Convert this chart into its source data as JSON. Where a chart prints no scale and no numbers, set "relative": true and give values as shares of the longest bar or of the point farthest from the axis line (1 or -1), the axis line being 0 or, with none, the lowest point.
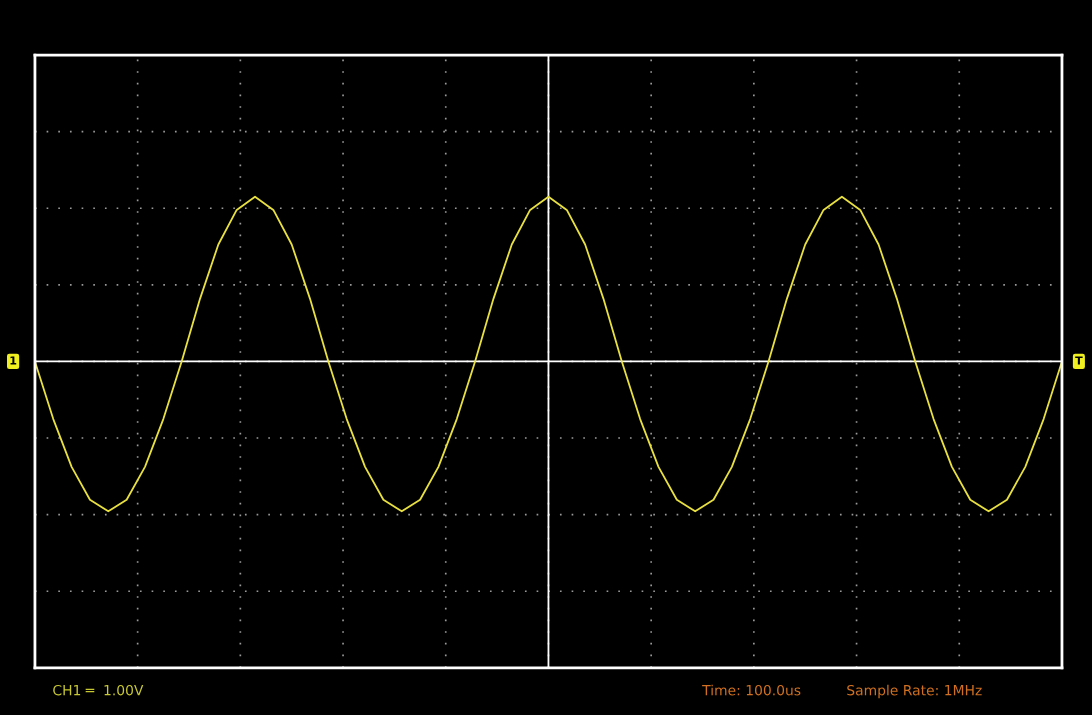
{
  "chart_data": {
    "type": "line",
    "relative": true,
    "grid": true,
    "categories": [
      null,
      null,
      null,
      null,
      null,
      null,
      null,
      null,
      null,
      null,
      null,
      null,
      null,
      null,
      null,
      null,
      null,
      null,
      null,
      null,
      null,
      null,
      null,
      null,
      null,
      null,
      null,
      null,
      null,
      null,
      null,
      null,
      null,
      null,
      null,
      null,
      null,
      null,
      null,
      null,
      null,
      null,
      null,
      null,
      null,
      null,
      null,
      null,
      null,
      null,
      null,
      null,
      null,
      null,
      null,
      null,
      null
    ],
    "series": [
      {
        "color": "#e8e040",
        "values": [
          0,
          -0.35,
          -0.64,
          -0.84,
          -0.91,
          -0.84,
          -0.64,
          -0.35,
          0,
          0.38,
          0.71,
          0.92,
          1,
          0.92,
          0.71,
          0.38,
          0,
          -0.35,
          -0.64,
          -0.84,
          -0.91,
          -0.84,
          -0.64,
          -0.35,
          0,
          0.38,
          0.71,
          0.92,
          1,
          0.92,
          0.71,
          0.38,
          0,
          -0.35,
          -0.64,
          -0.84,
          -0.91,
          -0.84,
          -0.64,
          -0.35,
          0,
          0.38,
          0.71,
          0.92,
          1,
          0.92,
          0.71,
          0.38,
          0,
          -0.35,
          -0.64,
          -0.84,
          -0.91,
          -0.84,
          -0.64,
          -0.35,
          0
        ]
      }
    ],
    "annotations": [
      "CH1 ═  1.00V",
      "Time: 100.0us",
      "Sample Rate: 1MHz",
      "1",
      "T"
    ]
  }
}
